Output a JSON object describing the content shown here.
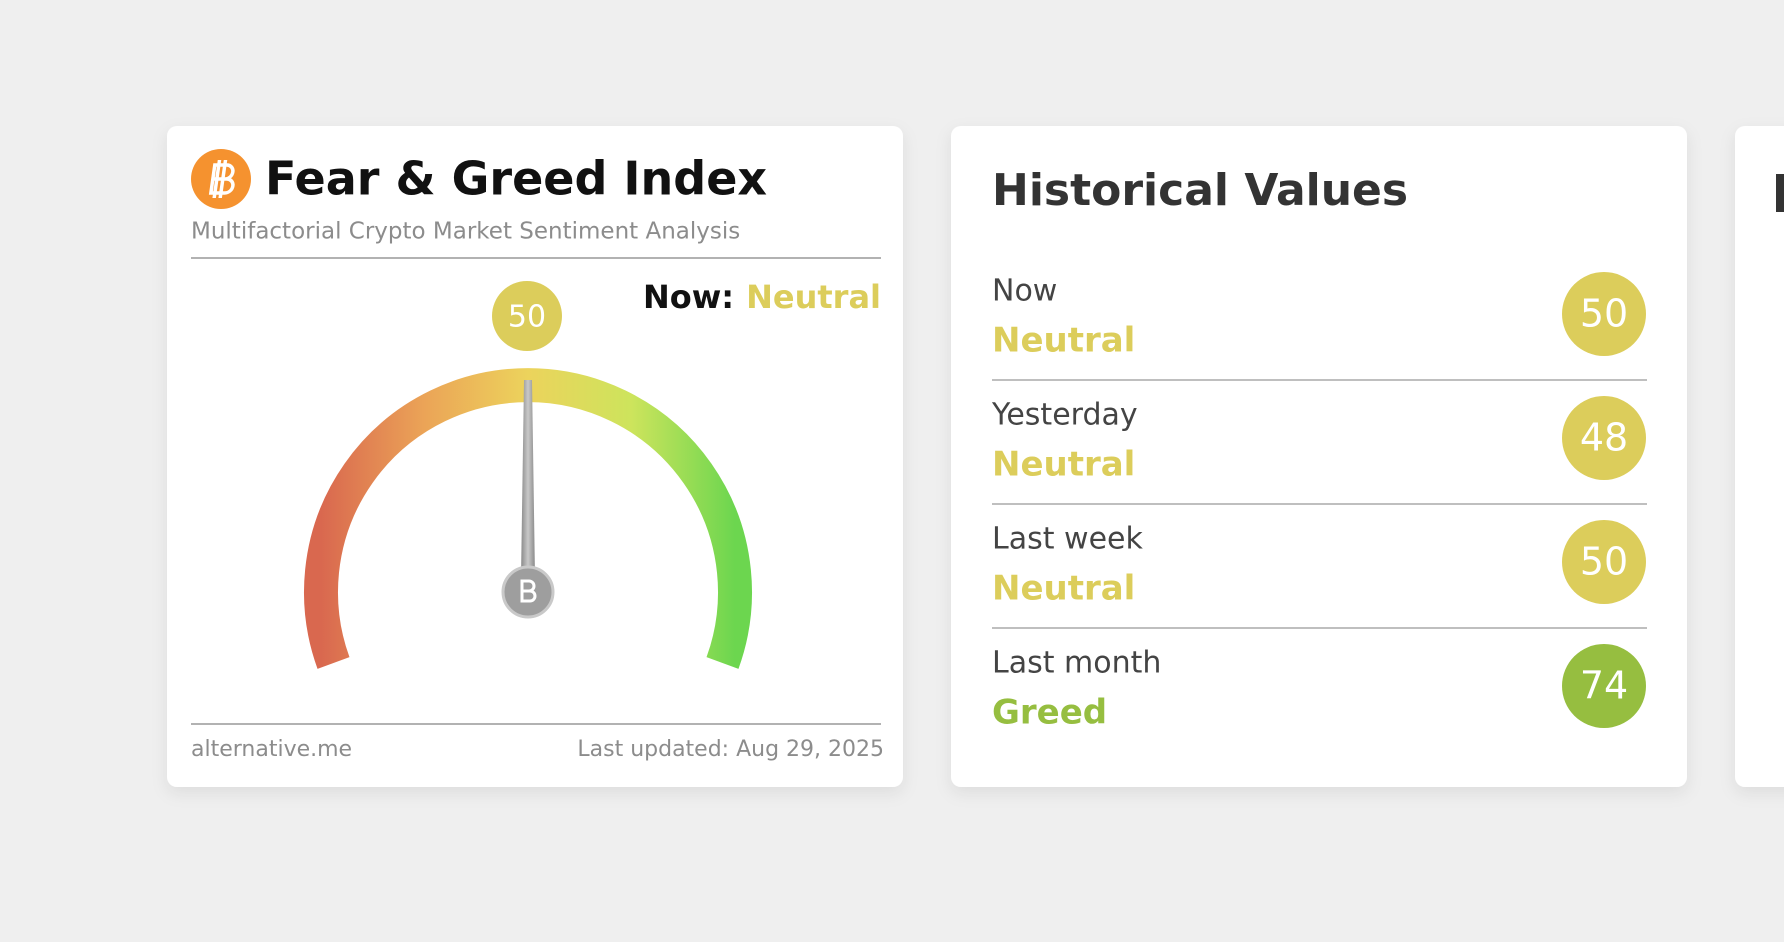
{
  "fear_greed_card": {
    "title": "Fear & Greed Index",
    "subtitle": "Multifactorial Crypto Market Sentiment Analysis",
    "now_label": "Now:",
    "now_classification": "Neutral",
    "now_color": "#dccd5b",
    "value": 50,
    "source": "alternative.me",
    "last_updated": "Last updated: Aug 29, 2025"
  },
  "historical_card": {
    "title": "Historical Values",
    "rows": [
      {
        "label": "Now",
        "classification": "Neutral",
        "value": 50,
        "color": "#dccd5b"
      },
      {
        "label": "Yesterday",
        "classification": "Neutral",
        "value": 48,
        "color": "#dccd5b"
      },
      {
        "label": "Last week",
        "classification": "Neutral",
        "value": 50,
        "color": "#dccd5b"
      },
      {
        "label": "Last month",
        "classification": "Greed",
        "value": 74,
        "color": "#96be40"
      }
    ]
  }
}
